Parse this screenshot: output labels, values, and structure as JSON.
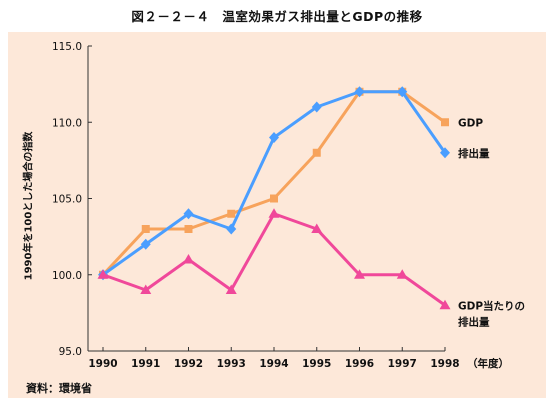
{
  "title": "図２－２－４　温室効果ガス排出量とGDPの推移",
  "source": "資料：環境省",
  "chart_data": {
    "type": "line",
    "ylabel": "1990年を100とした場合の指数",
    "x": [
      "1990",
      "1991",
      "1992",
      "1993",
      "1994",
      "1995",
      "1996",
      "1997",
      "1998"
    ],
    "x_unit": "（年度）",
    "ylim": [
      95.0,
      115.0
    ],
    "yticks": [
      "95.0",
      "100.0",
      "105.0",
      "110.0",
      "115.0"
    ],
    "grid": false,
    "series": [
      {
        "name": "GDP",
        "color": "#f7a35c",
        "marker": "square",
        "values": [
          100,
          103,
          103,
          104,
          105,
          108,
          112,
          112,
          110
        ]
      },
      {
        "name": "排出量",
        "color": "#4a9eff",
        "marker": "diamond",
        "values": [
          100,
          102,
          104,
          103,
          109,
          111,
          112,
          112,
          108
        ]
      },
      {
        "name": "GDP当たりの\n排出量",
        "color": "#f0489a",
        "marker": "triangle",
        "values": [
          100,
          99,
          101,
          99,
          104,
          103,
          100,
          100,
          98
        ]
      }
    ]
  }
}
